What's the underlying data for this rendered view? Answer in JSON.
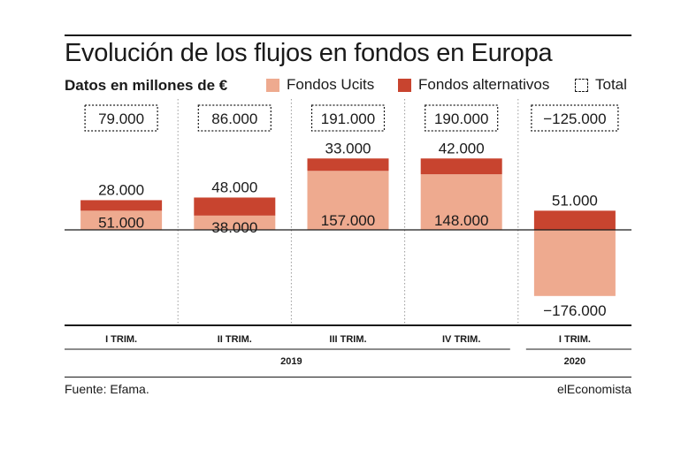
{
  "title": "Evolución de los flujos en fondos en Europa",
  "subtitle": "Datos en millones de €",
  "legend": {
    "ucits": "Fondos Ucits",
    "alternativos": "Fondos alternativos",
    "total": "Total"
  },
  "colors": {
    "ucits": "#eeaa8f",
    "alternativos": "#c8442f",
    "axis": "#1a1a1a",
    "divider": "#9a9a9a"
  },
  "source": "Fuente: Efama.",
  "brand": "elEconomista",
  "chart_data": {
    "type": "bar",
    "stacked": true,
    "categories": [
      "I TRIM.",
      "II TRIM.",
      "III TRIM.",
      "IV TRIM.",
      "I TRIM."
    ],
    "year_groups": [
      {
        "label": "2019",
        "count": 4
      },
      {
        "label": "2020",
        "count": 1
      }
    ],
    "series": [
      {
        "name": "Fondos Ucits",
        "values": [
          51000,
          38000,
          157000,
          148000,
          -176000
        ],
        "labels": [
          "51.000",
          "38.000",
          "157.000",
          "148.000",
          "−176.000"
        ]
      },
      {
        "name": "Fondos alternativos",
        "values": [
          28000,
          48000,
          33000,
          42000,
          51000
        ],
        "labels": [
          "28.000",
          "48.000",
          "33.000",
          "42.000",
          "51.000"
        ]
      }
    ],
    "totals": {
      "name": "Total",
      "values": [
        79000,
        86000,
        191000,
        190000,
        -125000
      ],
      "labels": [
        "79.000",
        "86.000",
        "191.000",
        "190.000",
        "−125.000"
      ]
    },
    "unit": "millones de €",
    "ylim": [
      -230000,
      215000
    ],
    "grid": false
  }
}
